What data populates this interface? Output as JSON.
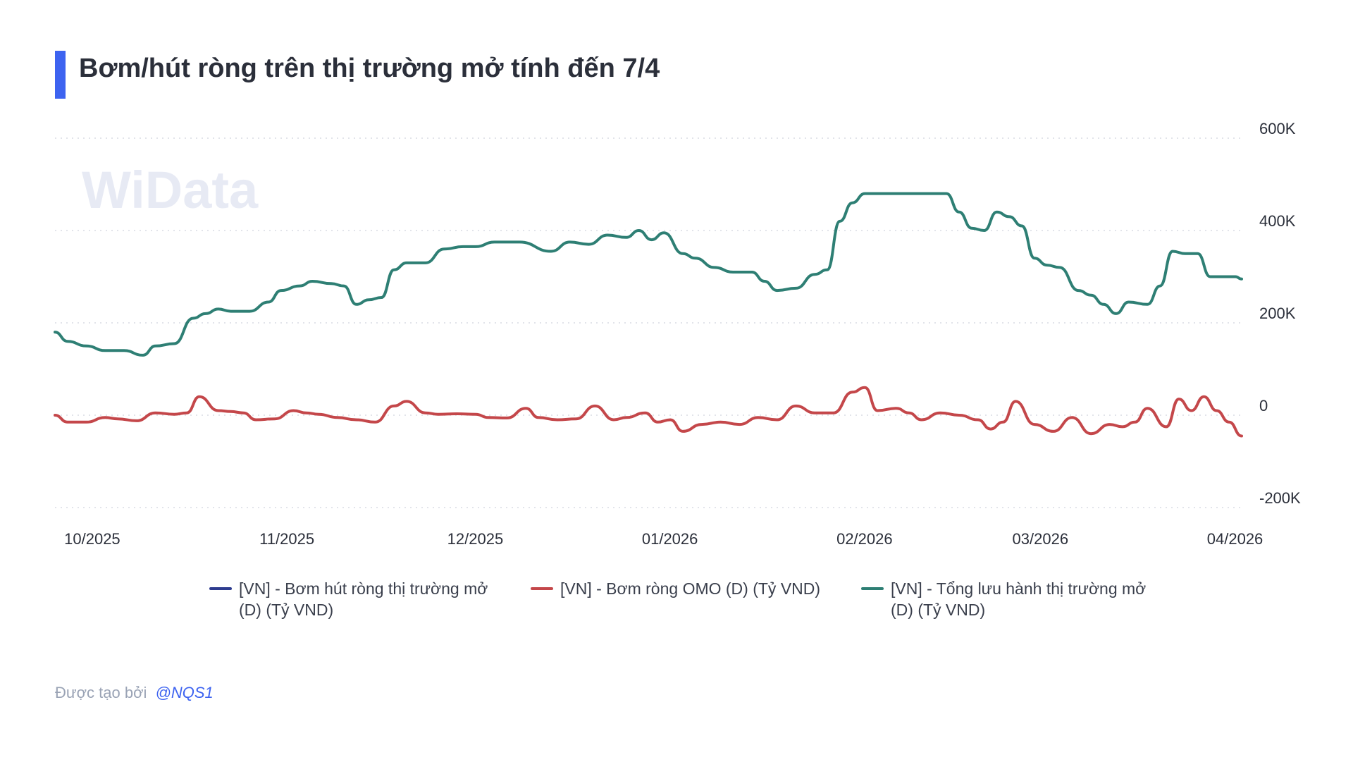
{
  "title": "Bơm/hút ròng trên thị trường mở tính đến 7/4",
  "watermark": "WiData",
  "legend": [
    {
      "label": "[VN] - Bơm hút ròng thị trường mở (D) (Tỷ VND)",
      "color": "#2e3c8f"
    },
    {
      "label": "[VN] - Bơm ròng OMO (D) (Tỷ VND)",
      "color": "#c4474a"
    },
    {
      "label": "[VN] - Tổng lưu hành thị trường mở (D) (Tỷ VND)",
      "color": "#2e7f74"
    }
  ],
  "footer": {
    "text": "Được tạo bởi",
    "handle": "@NQS1"
  },
  "chart_data": {
    "type": "line",
    "title": "Bơm/hút ròng trên thị trường mở tính đến 7/4",
    "ylim": [
      -200000,
      600000
    ],
    "yticks": [
      {
        "value": 600000,
        "label": "600K"
      },
      {
        "value": 400000,
        "label": "400K"
      },
      {
        "value": 200000,
        "label": "200K"
      },
      {
        "value": 0,
        "label": "0"
      },
      {
        "value": -200000,
        "label": "-200K"
      }
    ],
    "xlim": [
      "2025-09-30",
      "2026-04-07"
    ],
    "xticks": [
      {
        "date": "2025-10-01",
        "label": "10/2025"
      },
      {
        "date": "2025-11-01",
        "label": "11/2025"
      },
      {
        "date": "2025-12-01",
        "label": "12/2025"
      },
      {
        "date": "2026-01-01",
        "label": "01/2026"
      },
      {
        "date": "2026-02-01",
        "label": "02/2026"
      },
      {
        "date": "2026-03-01",
        "label": "03/2026"
      },
      {
        "date": "2026-04-01",
        "label": "04/2026"
      }
    ],
    "grid": true,
    "legend_position": "bottom",
    "series": [
      {
        "name": "[VN] - Bơm hút ròng thị trường mở (D) (Tỷ VND)",
        "color": "#2e3c8f",
        "x": [],
        "y": []
      },
      {
        "name": "[VN] - Bơm ròng OMO (D) (Tỷ VND)",
        "color": "#c4474a",
        "x": [
          "2025-09-30",
          "2025-10-02",
          "2025-10-05",
          "2025-10-08",
          "2025-10-10",
          "2025-10-13",
          "2025-10-16",
          "2025-10-19",
          "2025-10-21",
          "2025-10-23",
          "2025-10-26",
          "2025-10-28",
          "2025-10-30",
          "2025-11-01",
          "2025-11-04",
          "2025-11-07",
          "2025-11-09",
          "2025-11-11",
          "2025-11-14",
          "2025-11-17",
          "2025-11-20",
          "2025-11-23",
          "2025-11-25",
          "2025-11-28",
          "2025-11-30",
          "2025-12-03",
          "2025-12-06",
          "2025-12-08",
          "2025-12-11",
          "2025-12-14",
          "2025-12-16",
          "2025-12-19",
          "2025-12-22",
          "2025-12-25",
          "2025-12-28",
          "2025-12-30",
          "2026-01-02",
          "2026-01-04",
          "2026-01-06",
          "2026-01-08",
          "2026-01-11",
          "2026-01-14",
          "2026-01-17",
          "2026-01-20",
          "2026-01-23",
          "2026-01-26",
          "2026-01-29",
          "2026-02-01",
          "2026-02-04",
          "2026-02-06",
          "2026-02-08",
          "2026-02-11",
          "2026-02-13",
          "2026-02-15",
          "2026-02-18",
          "2026-02-21",
          "2026-02-24",
          "2026-02-26",
          "2026-02-28",
          "2026-03-02",
          "2026-03-05",
          "2026-03-08",
          "2026-03-11",
          "2026-03-14",
          "2026-03-17",
          "2026-03-19",
          "2026-03-21",
          "2026-03-23",
          "2026-03-26",
          "2026-03-28",
          "2026-03-30",
          "2026-04-01",
          "2026-04-03",
          "2026-04-05",
          "2026-04-07"
        ],
        "y": [
          0,
          -15000,
          -15000,
          -5000,
          -8000,
          -12000,
          5000,
          2000,
          5000,
          40000,
          10000,
          8000,
          5000,
          -10000,
          -8000,
          10000,
          5000,
          2000,
          -5000,
          -10000,
          -15000,
          20000,
          30000,
          5000,
          2000,
          3000,
          2000,
          -5000,
          -6000,
          15000,
          -5000,
          -10000,
          -8000,
          20000,
          -10000,
          -5000,
          5000,
          -15000,
          -10000,
          -35000,
          -20000,
          -15000,
          -20000,
          -5000,
          -10000,
          20000,
          5000,
          5000,
          50000,
          60000,
          10000,
          15000,
          5000,
          -10000,
          5000,
          0,
          -10000,
          -30000,
          -15000,
          30000,
          -20000,
          -35000,
          -5000,
          -40000,
          -20000,
          -25000,
          -15000,
          15000,
          -25000,
          35000,
          10000,
          40000,
          10000,
          -15000,
          -45000
        ]
      },
      {
        "name": "[VN] - Tổng lưu hành thị trường mở (D) (Tỷ VND)",
        "color": "#2e7f74",
        "x": [
          "2025-09-30",
          "2025-10-02",
          "2025-10-05",
          "2025-10-08",
          "2025-10-11",
          "2025-10-14",
          "2025-10-16",
          "2025-10-19",
          "2025-10-22",
          "2025-10-24",
          "2025-10-26",
          "2025-10-28",
          "2025-10-31",
          "2025-11-03",
          "2025-11-05",
          "2025-11-08",
          "2025-11-10",
          "2025-11-13",
          "2025-11-15",
          "2025-11-17",
          "2025-11-19",
          "2025-11-21",
          "2025-11-23",
          "2025-11-25",
          "2025-11-28",
          "2025-12-01",
          "2025-12-04",
          "2025-12-06",
          "2025-12-09",
          "2025-12-13",
          "2025-12-18",
          "2025-12-21",
          "2025-12-24",
          "2025-12-27",
          "2025-12-30",
          "2026-01-01",
          "2026-01-03",
          "2026-01-05",
          "2026-01-08",
          "2026-01-10",
          "2026-01-13",
          "2026-01-16",
          "2026-01-19",
          "2026-01-21",
          "2026-01-23",
          "2026-01-26",
          "2026-01-29",
          "2026-01-31",
          "2026-02-02",
          "2026-02-04",
          "2026-02-06",
          "2026-02-08",
          "2026-02-10",
          "2026-02-13",
          "2026-02-16",
          "2026-02-19",
          "2026-02-21",
          "2026-02-23",
          "2026-02-25",
          "2026-02-27",
          "2026-03-01",
          "2026-03-03",
          "2026-03-05",
          "2026-03-07",
          "2026-03-09",
          "2026-03-12",
          "2026-03-14",
          "2026-03-16",
          "2026-03-18",
          "2026-03-20",
          "2026-03-23",
          "2026-03-25",
          "2026-03-27",
          "2026-03-29",
          "2026-03-31",
          "2026-04-02",
          "2026-04-04",
          "2026-04-06",
          "2026-04-07"
        ],
        "y": [
          180000,
          160000,
          150000,
          140000,
          140000,
          130000,
          150000,
          155000,
          210000,
          220000,
          230000,
          225000,
          225000,
          245000,
          270000,
          280000,
          290000,
          285000,
          280000,
          240000,
          250000,
          255000,
          315000,
          330000,
          330000,
          360000,
          365000,
          365000,
          375000,
          375000,
          355000,
          375000,
          370000,
          390000,
          385000,
          400000,
          380000,
          395000,
          350000,
          340000,
          320000,
          310000,
          310000,
          290000,
          270000,
          275000,
          305000,
          315000,
          420000,
          460000,
          480000,
          480000,
          480000,
          480000,
          480000,
          480000,
          440000,
          405000,
          400000,
          440000,
          430000,
          410000,
          340000,
          325000,
          320000,
          270000,
          260000,
          240000,
          220000,
          245000,
          240000,
          280000,
          355000,
          350000,
          350000,
          300000,
          300000,
          300000,
          295000
        ]
      }
    ]
  }
}
